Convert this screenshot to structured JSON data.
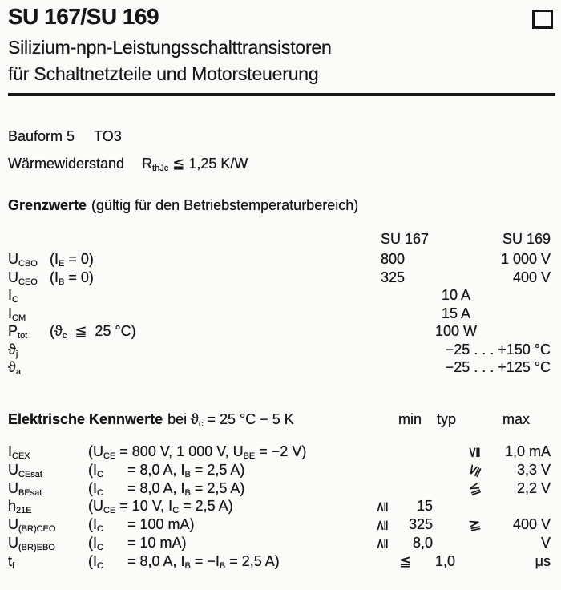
{
  "page": {
    "title": "SU 167/SU 169",
    "subtitle_line1": "Silizium-npn-Leistungsschalttransistoren",
    "subtitle_line2": "für Schaltnetzteile und Motorsteuerung",
    "corner_icon": "empty-square-marker"
  },
  "info": {
    "bauform_label": "Bauform 5",
    "bauform_value": "TO3",
    "thermal_label": "Wärmewiderstand",
    "thermal_value": "R~thJc~  ≦  1,25 K/W"
  },
  "grenzwerte": {
    "heading_bold": "Grenzwerte",
    "heading_rest": "(gültig für den Betriebstemperaturbereich)",
    "col_su167": "SU 167",
    "col_su169": "SU 169",
    "rows": [
      {
        "param": "U~CBO~",
        "cond": "(I~E~ = 0)",
        "su167": "800",
        "su169": "1 000 V"
      },
      {
        "param": "U~CEO~",
        "cond": "(I~B~ = 0)",
        "su167": "325",
        "su169": "400 V"
      },
      {
        "param": "I~C~",
        "cond": "",
        "center": "10 A"
      },
      {
        "param": "I~CM~",
        "cond": "",
        "center": "15 A"
      },
      {
        "param": "P~tot~",
        "cond": "(ϑ~c~  ≦  25 °C)",
        "center": "100 W"
      },
      {
        "param": "ϑ~j~",
        "cond": "",
        "right": "−25 . . . +150 °C"
      },
      {
        "param": "ϑ~a~",
        "cond": "",
        "right": "−25 . . . +125 °C"
      }
    ]
  },
  "kennwerte": {
    "heading_bold": "Elektrische Kennwerte",
    "heading_rest": "bei ϑ~c~ = 25 °C − 5 K",
    "col_min": "min",
    "col_typ": "typ",
    "col_max": "max",
    "rows": [
      {
        "param": "I~CEX~",
        "cond": "(U~CE~ = 800 V, 1 000 V, U~BE~ = −2 V)",
        "min_sym": "",
        "min": "",
        "max_sym": "≦",
        "max": "1,0 mA"
      },
      {
        "param": "U~CEsat~",
        "cond": "(I~C~      = 8,0 A, I~B~ = 2,5 A)",
        "min_sym": "",
        "min": "",
        "max_sym": "≦",
        "max": "3,3 V"
      },
      {
        "param": "U~BEsat~",
        "cond": "(I~C~      = 8,0 A, I~B~ = 2,5 A)",
        "min_sym": "",
        "min": "",
        "max_sym": "≦",
        "max": "2,2 V"
      },
      {
        "param": "h~21E~",
        "cond": "(U~CE~ = 10 V, I~C~ = 2,5 A)",
        "min_sym": "≧",
        "min": "15",
        "max_sym": "",
        "max": ""
      },
      {
        "param": "U~(BR)CEO~",
        "cond": "(I~C~      = 100 mA)",
        "min_sym": "≧",
        "min": "325",
        "max_sym": "≧",
        "max": "400 V"
      },
      {
        "param": "U~(BR)EBO~",
        "cond": "(I~C~      = 10 mA)",
        "min_sym": "≧",
        "min": "8,0",
        "max_sym": "",
        "max": "V"
      },
      {
        "param": "t~f~",
        "cond": "(I~C~      = 8,0 A, I~B~ = −I~B~ = 2,5 A)",
        "min_sym": "≦",
        "min": "1,0",
        "max_sym": "",
        "max": "μs"
      }
    ]
  },
  "colors": {
    "ink": "#161616",
    "paper": "#fbfbf9"
  }
}
